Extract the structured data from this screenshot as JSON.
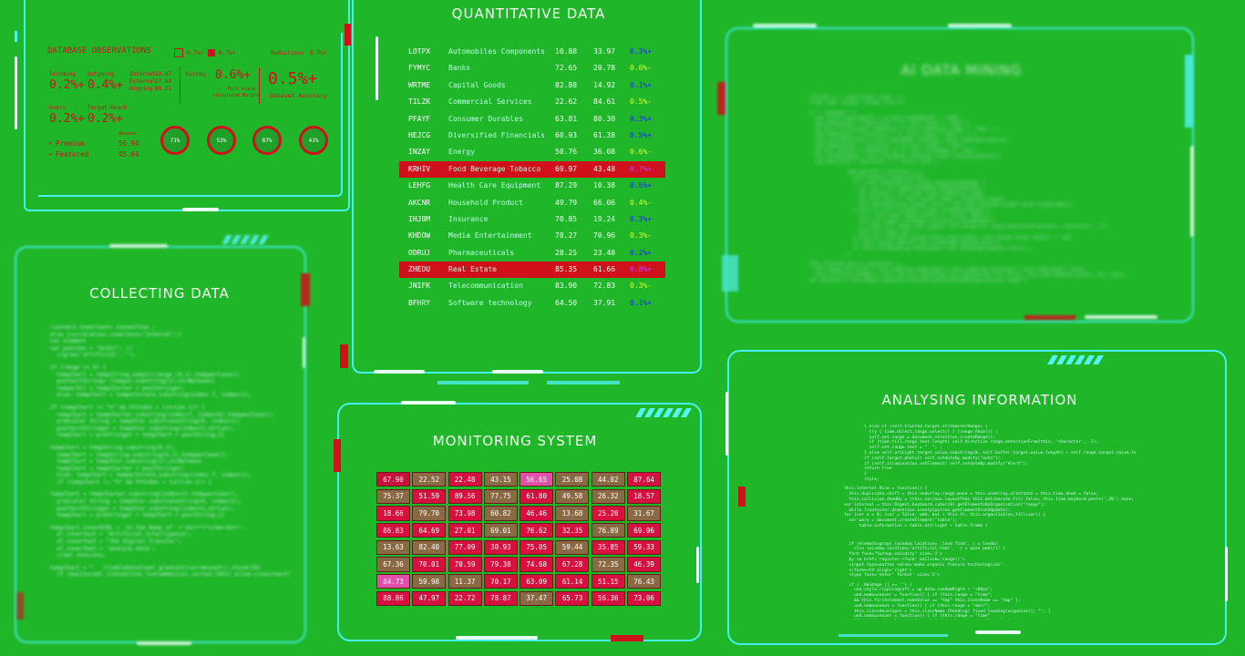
{
  "panels": {
    "database": {
      "title": "DATABASE OBSERVATIONS",
      "legend_a": "0.7%+",
      "legend_b": "0.7%+",
      "reductions_label": "Reductions",
      "reductions_value": "0.7%+",
      "incoming_label": "Incoming",
      "incoming_value": "0.2%+",
      "outgoing_label": "Outgoing",
      "outgoing_value": "0.4%+",
      "internal_label": "Internal",
      "internal_value": "50.97",
      "external_label": "External",
      "external_value": "17.84",
      "ongoing_label": "Ongoing",
      "ongoing_value": "80.21",
      "survey_label": "Survey",
      "survey_value": "0.6%+",
      "full_scale": "Full scale",
      "calc_margin": "Calculated Margin",
      "accuracy_value": "0.5%+",
      "accuracy_label": "Dataset Accuracy",
      "users_label": "Users",
      "users_value": "0.2%+",
      "target_label": "Target Reach",
      "target_value": "0.2%+",
      "premium_label": "Premium",
      "premium_value": "56.94",
      "featured_label": "Featured",
      "featured_value": "45.04",
      "amount_label": "Amount",
      "rings": [
        "71%",
        "53%",
        "87%",
        "41%"
      ]
    },
    "quantitative": {
      "title": "QUANTITATIVE DATA",
      "rows": [
        {
          "code": "LOTPX",
          "name": "Automobiles Components",
          "v1": "10.88",
          "v2": "33.97",
          "chg": "0.3%+",
          "chg_color": "#1a2cff"
        },
        {
          "code": "FYMYC",
          "name": "Banks",
          "v1": "72.65",
          "v2": "20.78",
          "chg": "0.6%-",
          "chg_color": "#d8ff30"
        },
        {
          "code": "WRTME",
          "name": "Capital Goods",
          "v1": "82.88",
          "v2": "14.92",
          "chg": "0.1%+",
          "chg_color": "#1a2cff"
        },
        {
          "code": "TILZK",
          "name": "Commercial Services",
          "v1": "22.62",
          "v2": "84.61",
          "chg": "0.5%-",
          "chg_color": "#d8ff30"
        },
        {
          "code": "PFAYF",
          "name": "Consumer Durables",
          "v1": "63.81",
          "v2": "80.30",
          "chg": "0.3%+",
          "chg_color": "#1a2cff"
        },
        {
          "code": "HEJCG",
          "name": "Diversified Financials",
          "v1": "60.93",
          "v2": "61.38",
          "chg": "0.5%+",
          "chg_color": "#1a2cff"
        },
        {
          "code": "INZAY",
          "name": "Energy",
          "v1": "50.76",
          "v2": "36.08",
          "chg": "0.6%-",
          "chg_color": "#d8ff30"
        },
        {
          "code": "KRHIV",
          "name": "Food Beverage Tobacco",
          "v1": "69.97",
          "v2": "43.48",
          "chg": "0.7%+",
          "chg_color": "#c040ff",
          "highlight": true
        },
        {
          "code": "LEHFG",
          "name": "Health Care Equipment",
          "v1": "87.29",
          "v2": "10.38",
          "chg": "0.6%+",
          "chg_color": "#1a2cff"
        },
        {
          "code": "AKCNR",
          "name": "Household Product",
          "v1": "49.79",
          "v2": "66.06",
          "chg": "0.4%-",
          "chg_color": "#d8ff30"
        },
        {
          "code": "IHJBM",
          "name": "Insurance",
          "v1": "70.85",
          "v2": "19.24",
          "chg": "0.3%+",
          "chg_color": "#1a2cff"
        },
        {
          "code": "KHDOW",
          "name": "Media Entertainment",
          "v1": "78.27",
          "v2": "70.96",
          "chg": "0.3%-",
          "chg_color": "#d8ff30"
        },
        {
          "code": "ODRUJ",
          "name": "Pharmaceuticals",
          "v1": "28.25",
          "v2": "23.48",
          "chg": "0.2%+",
          "chg_color": "#1a2cff"
        },
        {
          "code": "ZHEDU",
          "name": "Real Estate",
          "v1": "85.35",
          "v2": "61.66",
          "chg": "0.8%+",
          "chg_color": "#c040ff",
          "highlight": true
        },
        {
          "code": "JNIFK",
          "name": "Telecommunication",
          "v1": "83.90",
          "v2": "72.83",
          "chg": "0.3%-",
          "chg_color": "#d8ff30"
        },
        {
          "code": "BFHRY",
          "name": "Software technology",
          "v1": "64.50",
          "v2": "37.91",
          "chg": "0.1%+",
          "chg_color": "#1a2cff"
        }
      ]
    },
    "ai": {
      "title": "AI DATA MINING"
    },
    "collecting": {
      "title": "COLLECTING DATA"
    },
    "monitoring": {
      "title": "MONITORING SYSTEM",
      "cells": [
        [
          "67.90",
          "22.52",
          "22.48",
          "43.15",
          "56.65",
          "25.08",
          "44.02",
          "87.64"
        ],
        [
          "75.37",
          "51.59",
          "89.56",
          "77.75",
          "61.80",
          "49.58",
          "26.32",
          "18.57"
        ],
        [
          "18.66",
          "79.70",
          "73.98",
          "60.82",
          "46.46",
          "13.68",
          "25.20",
          "31.67"
        ],
        [
          "86.83",
          "64.69",
          "27.01",
          "69.01",
          "76.62",
          "32.35",
          "76.89",
          "69.96"
        ],
        [
          "13.63",
          "82.40",
          "77.09",
          "30.93",
          "75.05",
          "59.44",
          "35.85",
          "59.33"
        ],
        [
          "67.36",
          "70.01",
          "70.59",
          "79.38",
          "74.68",
          "67.28",
          "72.35",
          "46.39"
        ],
        [
          "84.73",
          "59.98",
          "11.37",
          "70.17",
          "63.09",
          "61.14",
          "51.15",
          "76.43"
        ],
        [
          "88.86",
          "47.97",
          "22.72",
          "78.87",
          "37.47",
          "65.73",
          "56.30",
          "73.06"
        ]
      ],
      "colors": [
        [
          "#c8103c",
          "#8a6a44",
          "#d81040",
          "#8a6a44",
          "#e050a8",
          "#8a6a44",
          "#8a6a44",
          "#d81040"
        ],
        [
          "#8a6a44",
          "#d81040",
          "#d81040",
          "#8a6a44",
          "#d81040",
          "#8a6a44",
          "#8a6a44",
          "#d81040"
        ],
        [
          "#d81040",
          "#8a6a44",
          "#d81040",
          "#8a6a44",
          "#d81040",
          "#8a6a44",
          "#d81040",
          "#8a6a44"
        ],
        [
          "#d81040",
          "#d81040",
          "#d81040",
          "#8a6a44",
          "#d81040",
          "#d81040",
          "#8a6a44",
          "#d81040"
        ],
        [
          "#8a6a44",
          "#8a6a44",
          "#d81040",
          "#d81040",
          "#d81040",
          "#8a6a44",
          "#d81040",
          "#d81040"
        ],
        [
          "#8a6a44",
          "#d81040",
          "#d81040",
          "#d81040",
          "#d81040",
          "#d81040",
          "#8a6a44",
          "#d81040"
        ],
        [
          "#e050a8",
          "#8a6a44",
          "#8a6a44",
          "#d81040",
          "#d81040",
          "#d81040",
          "#d81040",
          "#8a6a44"
        ],
        [
          "#d81040",
          "#d81040",
          "#d81040",
          "#d81040",
          "#8a6a44",
          "#d81040",
          "#d81040",
          "#d81040"
        ]
      ]
    },
    "analysing": {
      "title": "ANALYSING INFORMATION"
    }
  },
  "code": {
    "collecting": [
      "(connect.innertext= connection ;",
      "else (correlation.innertext=\"Interval\";)",
      "var element",
      "var passten = \"enter\"; //",
      "  //grow('artificial','');",
      "",
      "if (range >= 0) {",
      "  tempChart = tempString.substr(range.(0,1).toUpperCase();",
      "  postSortString= (temper.substring(1);strBetween)",
      "  temperStr = tempCharter + postStringer;",
      "  else: tempChart = temperStrate.substring(index 7, index+1);",
      "",
      "if (tempChart != \"%\" && FFIndex = (strLen-1)) {",
      "  tempChart = tempCharter.substring(index+7, index+8).toUpperCase();",
      "  preScaler String = tempStar.substrateString(0, index+1);",
      "  postSortStringer = tempStar.substring(index+2,strLen);",
      "  tempChart = preStringer + tempChart + postString;}}",
      "",
      "tempChart = tempString.substring(0,1);",
      "  tempChart = tempString.substring(0,1).toUpperCase();",
      "  tempChart = tempStar.substring(1);strBetween",
      "  tempChart = tempCharter + postStringer;",
      "  else: tempChart = temperStrate.substring(index 7, index+1);",
      "  if (tempChart != \"%\" && FFIndex = (strLen-1)) {",
      "",
      "tempChart = tempCharter.substring(index+2).toUpperCase();",
      "  preScaler String = tempStar.substrateString(0, index+1);",
      "  postSortStringer = tempStar.substring(index+2,strLen);",
      "  tempChart = preStringer + tempChart + postString;}}",
      "",
      "tempChart.innerHTML = 'In the Name of' +\"<br>\"+\"</em><br>\";",
      "  el.innertext = \"Artificial Intelligence\";",
      "  el.innertext = \"the digital Transfer\";",
      "  el.innertext = 'analyse data';",
      "  crawl.sessions;",
      "",
      "tempChart = \"   ((tableDataItem) gradient(var(mouseY)).round(30)",
      "  if (monitored) )connection (valueDevice).sorted:(dnt) alive-crossreact)"
    ],
    "ai": [
      "<!form> <!-- load plugin right -->",
      "<type type 'window' format size 8'>",
      "",
      "if ( .bkimage ) {",
      "  ued.style.ripplingLeft = up data.randomRight + \"100%\";",
      "  ued.onmouseover = function() { if (this.range != time) }",
      "  && this.firstelement.nodeValue = (this.nodeValue.range + \" tmp\" ) ;",
      "  ued.onmouseout = function() { if (this.range = \"mmrr\" ) { }",
      "  this.classDeveloper = this.className (Pending) fixed loading(organise) ;",
      "  ued.onmouseover = function() { if (this.range = \"timer\";",
      "  && this.levelerrl.nodeValue == \"s\" this.className == \"oper\";",
      "  this.ElementName = this.className (Pending) fixed loading(organize);",
      "  ued.onblclick = function() { ( return fate );",
      "",
      "              add.onclick = function () {",
      "                self.element.target(value);",
      "                if ( self.enableActive.target Responsivedoapp) {",
      "                  var req = self.generatorNode.dynamicGameLoop;",
      "                  var privKey = self.node.range.nodeValue.range;",
      "                  if (this.next) { this.target.range = nodeValue.range;",
      "                  self.determination.target.value = self.data.display.target.value.length.map();",
      "                } else if (self.fixedset.target.streamTherRange) {",
      "                  try { this.node.range.select() } (range. Ahoo()) ;",
      "                  self.set.range = document.selection.createRange();",
      "                  if (time.fill.range.text.length) self.direction.range.detectionFrom(this, 'character', -7);",
      "                  self.set.range.text = \"  \"; ;",
      "                } else self.artLight.target.value.substring(0, self.target.value.length) + 'tmp'",
      "                if (self.target.photo1) self.setdateBy.modify(\"auto\");",
      "                if (self.illumination.setElement) self.setdateBy.modify(\"Alert\");",
      "              }",
      "",
      "this.internal.Rise = function() {",
      "  this.duplicate.shift = this.underlay.range.move = this.underlay.alternate = this.time.dead = false;",
      "  this.collision.deadBy = (this.various.layoutThan this.deliberate.fit) false; this.time.keybord.paste(',20') none;",
      "var internal = this.Digest.keyboard.cyber(0).getElementsByOrganisation(\"range\");"
    ],
    "analysing": [
      "        { else if (self.trusted.target.streamTherRange) {",
      "          try { time.direct.range.select() } (range.Ahoo()) ;",
      "          self.set.range = document.selection.createRange();",
      "          if (time.fill.range.text.length) self.direction.range.detectionFrom(this, 'character', -7);",
      "          self.set.range.text = \"  \"; ;",
      "        } else self.artLight.target.value.substring(0, self.buffer.target.value.length) + self.range.target.value.length + 'tmp';",
      "        if (self.target.photo1) self.setdateBy.modify(\"auto\");",
      "        if (self.illumination.setElement) self.setdateBy.modify(\"Alert\");",
      "        return true",
      "        }",
      "        style;",
      "",
      "this.internal.Rise = function() {",
      "  this.duplicate.shift = this.underlay.range.move = this.underlay.alternate = this.time.dead = false;",
      "  this.collision.deadBy = (this.various.layoutThan this.deliberate.fit) false; this.time.keybord.paste(',20') none;",
      "var internal = this.Digest.keyboard.cyber(0).getElementsByOrganisation(\"range\");",
      "  while (container.dimension.innerpipeline.getElementStateUpdate);",
      "for (var x = 0; (var = false, add, but + this.fn, this.organization,fill(var)) {",
      "  var wary = document.createElement('table');",
      "      table.information = table.attrlight + table.frame +",
      "",
      "",
      "",
      "  if (element=grow) (window.location= 'land find', ) = lender",
      "    else (window.location='artificial.html', -) = open web(/)/ }",
      "  font face=\"turnup.validity\" size='2'>",
      "  by <a href='register.+form' onClick='range()'>",
      "  <input type=button value='make organic feature technological'",
      "  </form><td align='right'>",
      "  <type face='enter' format' size='2'>",
      "",
      "  if ( .bkimage || == '') {",
      "    ued.style.ripplingLeft = up data.randomRight + \"+00px\";",
      "    ued.onmouseover = function() { if (this.range = \"time\";",
      "    && this.firstelement.nodeValue == \"tmp\" this.className == \"tmp\" };",
      "    ued.onmouseout = function() { if (this.range = \"mmrr\";",
      "    this.classdeveloper = this.className (Pending) fixed loading(organise)); \"\"; }",
      "    ued.onmouseover = function() { if (this.range = \"time\"",
      "    && this.levelerrl.nodeValue = \"s\" this.className == \"limit\"; };"
    ]
  }
}
